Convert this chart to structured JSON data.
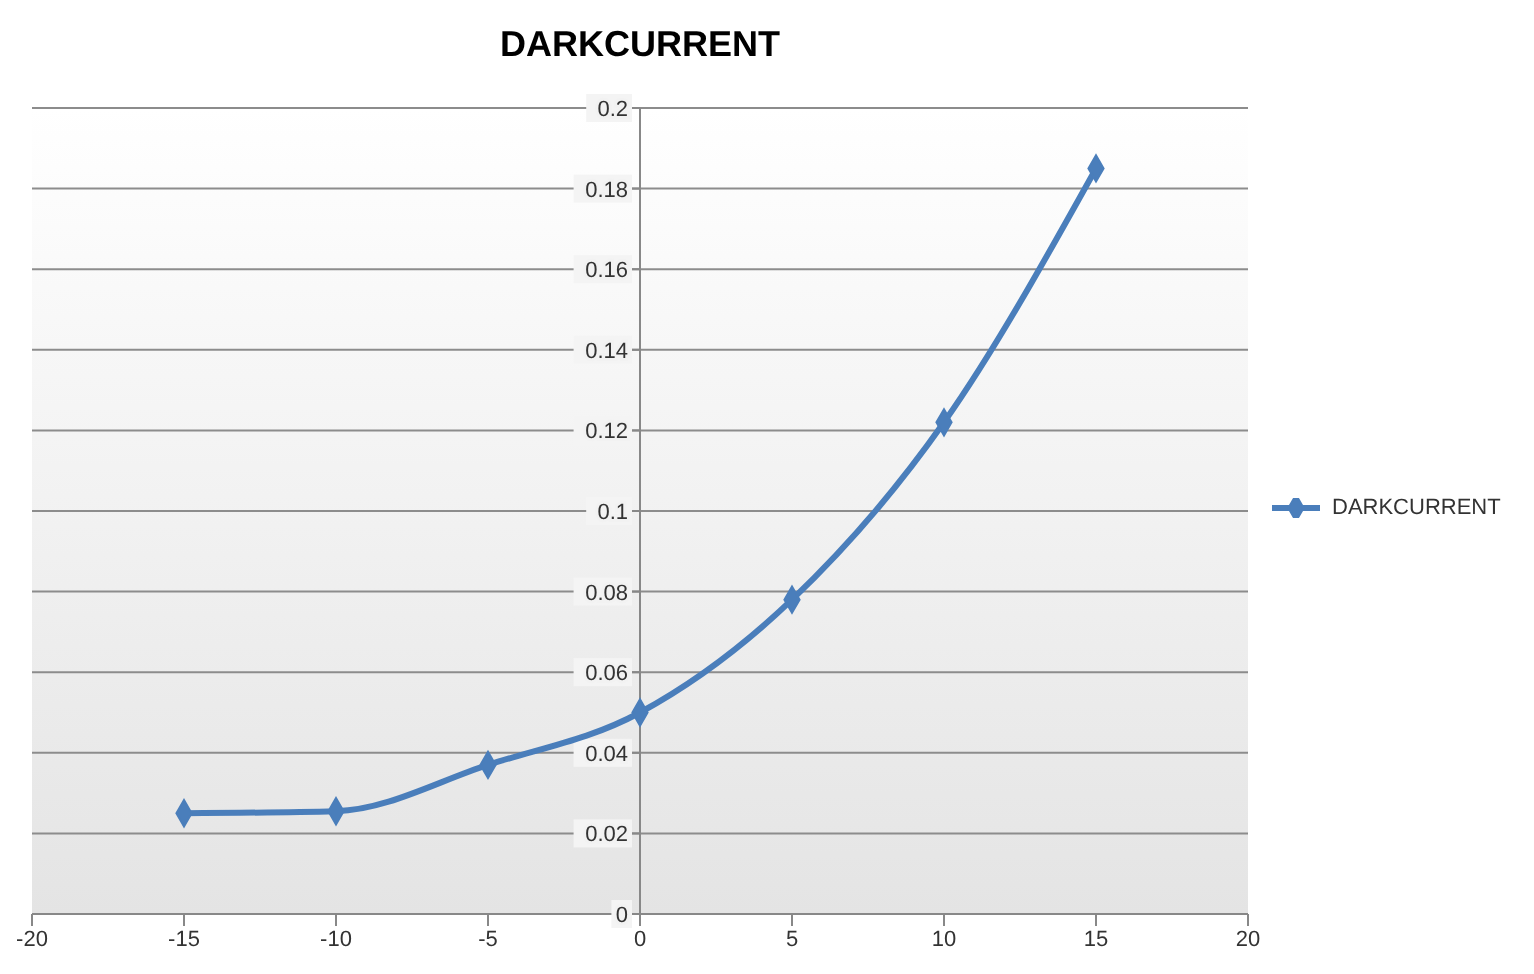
{
  "chart_data": {
    "type": "line",
    "title": "DARKCURRENT",
    "x": [
      -15,
      -10,
      -5,
      0,
      5,
      10,
      15
    ],
    "series": [
      {
        "name": "DARKCURRENT",
        "color": "#4a7ebb",
        "values": [
          0.025,
          0.0255,
          0.037,
          0.05,
          0.078,
          0.122,
          0.185
        ]
      }
    ],
    "xlim": [
      -20,
      20
    ],
    "xticks": [
      -20,
      -15,
      -10,
      -5,
      0,
      5,
      10,
      15,
      20
    ],
    "ylim": [
      0,
      0.2
    ],
    "yticks": [
      0,
      0.02,
      0.04,
      0.06,
      0.08,
      0.1,
      0.12,
      0.14,
      0.16,
      0.18,
      0.2
    ],
    "grid": "y",
    "legend": "right",
    "marker": "diamond",
    "line_style": "solid"
  }
}
